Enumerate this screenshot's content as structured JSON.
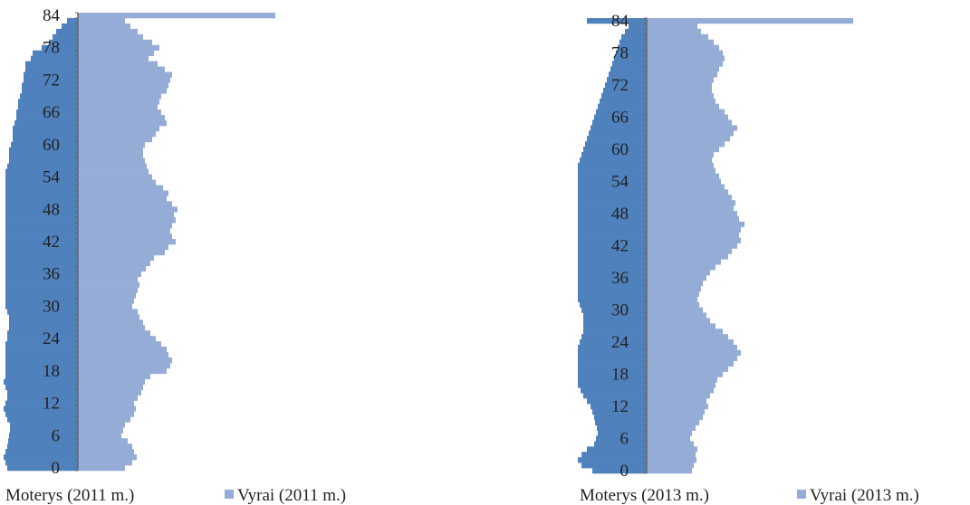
{
  "colors": {
    "men": "#4f81bd",
    "women": "#95acd6",
    "axis": "#666666",
    "text": "#222222"
  },
  "chart_data": [
    {
      "type": "bar",
      "orientation": "horizontal-pyramid",
      "title": "",
      "xlabel": "",
      "ylabel": "",
      "age_range": [
        0,
        84
      ],
      "tick_labels": [
        "0",
        "6",
        "12",
        "18",
        "24",
        "30",
        "36",
        "42",
        "48",
        "54",
        "60",
        "66",
        "72",
        "78",
        "84"
      ],
      "legend_position": "bottom",
      "series": [
        {
          "name": "Moterys (2011 m.)",
          "side": "left",
          "color_key": "men",
          "values": [
            78,
            80,
            82,
            80,
            78,
            77,
            76,
            75,
            75,
            78,
            80,
            82,
            80,
            78,
            78,
            80,
            82,
            80,
            80,
            80,
            80,
            80,
            80,
            80,
            78,
            78,
            76,
            76,
            76,
            78,
            80,
            80,
            80,
            80,
            80,
            80,
            80,
            80,
            80,
            80,
            80,
            80,
            80,
            80,
            80,
            80,
            80,
            80,
            80,
            80,
            80,
            80,
            80,
            80,
            80,
            80,
            78,
            76,
            76,
            76,
            74,
            72,
            72,
            72,
            70,
            68,
            68,
            66,
            66,
            64,
            62,
            62,
            60,
            60,
            58,
            58,
            52,
            50,
            40,
            32,
            28,
            24,
            18,
            12,
            0
          ]
        },
        {
          "name": "Vyrai (2011 m.)",
          "side": "right",
          "color_key": "women",
          "values": [
            52,
            60,
            65,
            62,
            60,
            55,
            48,
            50,
            52,
            58,
            62,
            64,
            62,
            66,
            70,
            72,
            74,
            80,
            98,
            102,
            104,
            100,
            98,
            92,
            86,
            80,
            74,
            72,
            68,
            66,
            60,
            62,
            64,
            66,
            68,
            66,
            70,
            75,
            80,
            84,
            96,
            100,
            108,
            104,
            102,
            104,
            108,
            106,
            110,
            104,
            98,
            100,
            94,
            86,
            82,
            78,
            76,
            74,
            72,
            72,
            74,
            82,
            86,
            90,
            98,
            96,
            92,
            88,
            90,
            92,
            98,
            100,
            102,
            104,
            96,
            88,
            78,
            84,
            90,
            82,
            72,
            66,
            58,
            52,
            218
          ]
        },
        {
          "name": "Moterys (2013 m.)",
          "side": "left",
          "color_key": "men",
          "values": [
            60,
            72,
            76,
            72,
            66,
            58,
            56,
            54,
            55,
            57,
            58,
            60,
            62,
            66,
            70,
            73,
            76,
            76,
            76,
            76,
            76,
            76,
            76,
            76,
            74,
            72,
            70,
            70,
            70,
            70,
            72,
            74,
            76,
            76,
            76,
            76,
            76,
            76,
            76,
            76,
            76,
            76,
            76,
            76,
            76,
            76,
            76,
            76,
            76,
            76,
            76,
            76,
            76,
            76,
            76,
            76,
            76,
            76,
            74,
            72,
            70,
            68,
            66,
            64,
            62,
            60,
            58,
            56,
            54,
            52,
            50,
            48,
            46,
            44,
            42,
            40,
            38,
            36,
            34,
            32,
            30,
            28,
            24,
            20,
            66
          ]
        },
        {
          "name": "Vyrai (2013 m.)",
          "side": "right",
          "color_key": "women",
          "values": [
            50,
            52,
            55,
            54,
            56,
            52,
            48,
            50,
            54,
            58,
            62,
            64,
            68,
            66,
            70,
            74,
            76,
            78,
            84,
            90,
            96,
            100,
            104,
            100,
            96,
            90,
            84,
            76,
            70,
            66,
            62,
            58,
            56,
            58,
            60,
            62,
            66,
            70,
            76,
            82,
            90,
            94,
            100,
            104,
            102,
            104,
            108,
            102,
            100,
            96,
            98,
            94,
            90,
            86,
            82,
            80,
            76,
            74,
            72,
            74,
            80,
            86,
            92,
            96,
            100,
            94,
            90,
            86,
            80,
            76,
            74,
            72,
            72,
            74,
            78,
            80,
            84,
            86,
            84,
            80,
            74,
            68,
            60,
            56,
            228
          ]
        }
      ]
    }
  ]
}
